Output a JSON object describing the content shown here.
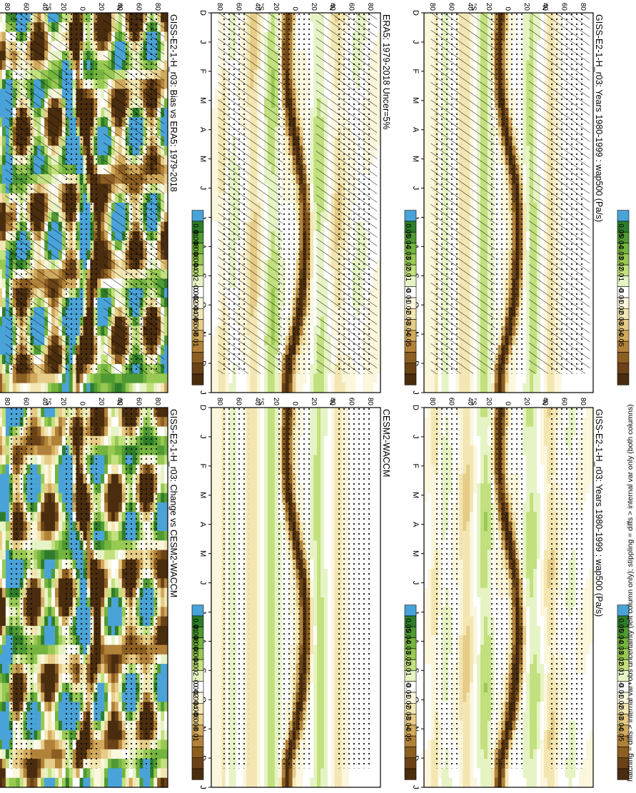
{
  "page": {
    "orientation": "rotated-90-clockwise",
    "footnote": "hatching = diffs > internal var+obs uncertainty (left column only); stippling = diffs > internal var only (both columns)"
  },
  "axes": {
    "month_labels": [
      "D",
      "J",
      "F",
      "M",
      "A",
      "M",
      "J",
      "J",
      "A",
      "S",
      "O",
      "N",
      "D",
      "J"
    ],
    "lat_labels": [
      "80",
      "60",
      "40",
      "20",
      "0",
      "20",
      "40",
      "60",
      "80"
    ],
    "hemisphere_labels": [
      "°N",
      "°S"
    ]
  },
  "colorbars": {
    "abs": {
      "labels": [
        "0.05",
        "0.04",
        "0.03",
        "0.02",
        "0.01",
        "0",
        "-0.01",
        "-0.02",
        "-0.03",
        "-0.04",
        "-0.05"
      ],
      "colors": [
        "#4aa3d8",
        "#2f7d2a",
        "#4f9a33",
        "#74b43f",
        "#98c953",
        "#c2e07e",
        "#e6f3c4",
        "#ffffff",
        "#fbf6dc",
        "#f3e6b2",
        "#e6cc86",
        "#d1a95c",
        "#b1823a",
        "#8c5e22",
        "#6a4318",
        "#4a2d0f"
      ]
    },
    "diff": {
      "labels": [
        "0.01",
        "0.008",
        "0.006",
        "0.004",
        "0.002",
        "0",
        "-0.002",
        "-0.004",
        "-0.006",
        "-0.008",
        "-0.01"
      ],
      "colors": [
        "#4aa3d8",
        "#2f7d2a",
        "#4f9a33",
        "#74b43f",
        "#98c953",
        "#c2e07e",
        "#e6f3c4",
        "#ffffff",
        "#fbf6dc",
        "#f3e6b2",
        "#e6cc86",
        "#d1a95c",
        "#b1823a",
        "#8c5e22",
        "#6a4318",
        "#4a2d0f"
      ]
    }
  },
  "panels": [
    {
      "id": "p1",
      "title": "GISS-E2-1-H_r03: Years 1980-1999 : wap500 (Pa/s)",
      "scale": "abs",
      "hatch": true,
      "stipple": true,
      "noisy": false
    },
    {
      "id": "p2",
      "title": "GISS-E2-1-H_r03: Years 1980-1999 : wap500 (Pa/s)",
      "scale": "abs",
      "hatch": false,
      "stipple": true,
      "noisy": false
    },
    {
      "id": "p3",
      "title": "ERA5: 1979-2018 Uncer=5%",
      "scale": "abs",
      "hatch": true,
      "stipple": true,
      "noisy": false
    },
    {
      "id": "p4",
      "title": "CESM2-WACCM",
      "scale": "abs",
      "hatch": false,
      "stipple": true,
      "noisy": false
    },
    {
      "id": "p5",
      "title": "GISS-E2-1-H_r03: Bias vs ERA5: 1979-2018",
      "scale": "diff",
      "hatch": true,
      "stipple": true,
      "noisy": true
    },
    {
      "id": "p6",
      "title": "GISS-E2-1-H_r03: Change vs CESM2-WACCM",
      "scale": "diff",
      "hatch": false,
      "stipple": true,
      "noisy": true
    }
  ],
  "chart_data": {
    "type": "heatmap",
    "variable": "wap500",
    "units": "Pa/s",
    "x": "month (Dec to Jan, seasonal cycle)",
    "y": "latitude (80N to 80S)",
    "zlim_abs": [
      -0.05,
      0.05
    ],
    "zlim_diff": [
      -0.01,
      0.01
    ],
    "itcz_latitude_by_month": {
      "months": [
        "D",
        "J",
        "F",
        "M",
        "A",
        "M",
        "J",
        "J",
        "A",
        "S",
        "O",
        "N",
        "D",
        "J"
      ],
      "lat": [
        -8,
        -10,
        -10,
        -8,
        -3,
        3,
        8,
        10,
        10,
        8,
        5,
        0,
        -8,
        -10
      ]
    },
    "subsidence_belts_lat": [
      -25,
      25,
      -65,
      65
    ]
  }
}
